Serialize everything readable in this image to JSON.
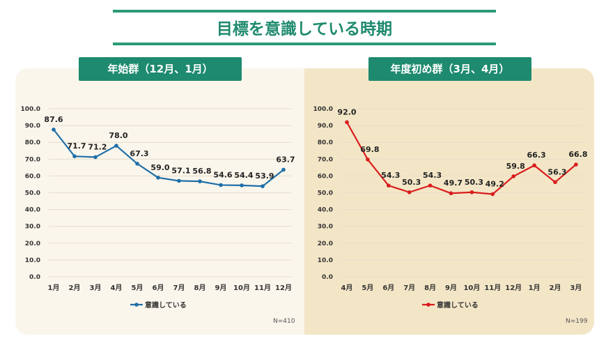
{
  "title": "目標を意識している時期",
  "chart_data": [
    {
      "type": "line",
      "title": "年始群（12月、1月）",
      "categories": [
        "1月",
        "2月",
        "3月",
        "4月",
        "5月",
        "6月",
        "7月",
        "8月",
        "9月",
        "10月",
        "11月",
        "12月"
      ],
      "series": [
        {
          "name": "意識している",
          "values": [
            87.6,
            71.7,
            71.2,
            78.0,
            67.3,
            59.0,
            57.1,
            56.8,
            54.6,
            54.4,
            53.9,
            63.7
          ],
          "color": "#1f6fa8"
        }
      ],
      "ylim": [
        0,
        100
      ],
      "yticks": [
        "0.0",
        "10.0",
        "20.0",
        "30.0",
        "40.0",
        "50.0",
        "60.0",
        "70.0",
        "80.0",
        "90.0",
        "100.0"
      ],
      "grid": true,
      "legend": "bottom",
      "note": "N=410"
    },
    {
      "type": "line",
      "title": "年度初め群（3月、4月）",
      "categories": [
        "4月",
        "5月",
        "6月",
        "7月",
        "8月",
        "9月",
        "10月",
        "11月",
        "12月",
        "1月",
        "2月",
        "3月"
      ],
      "series": [
        {
          "name": "意識している",
          "values": [
            92.0,
            69.8,
            54.3,
            50.3,
            54.3,
            49.7,
            50.3,
            49.2,
            59.8,
            66.3,
            56.3,
            66.8
          ],
          "color": "#d91c1c"
        }
      ],
      "ylim": [
        0,
        100
      ],
      "yticks": [
        "0.0",
        "10.0",
        "20.0",
        "30.0",
        "40.0",
        "50.0",
        "60.0",
        "70.0",
        "80.0",
        "90.0",
        "100.0"
      ],
      "grid": true,
      "legend": "bottom",
      "note": "N=199"
    }
  ]
}
